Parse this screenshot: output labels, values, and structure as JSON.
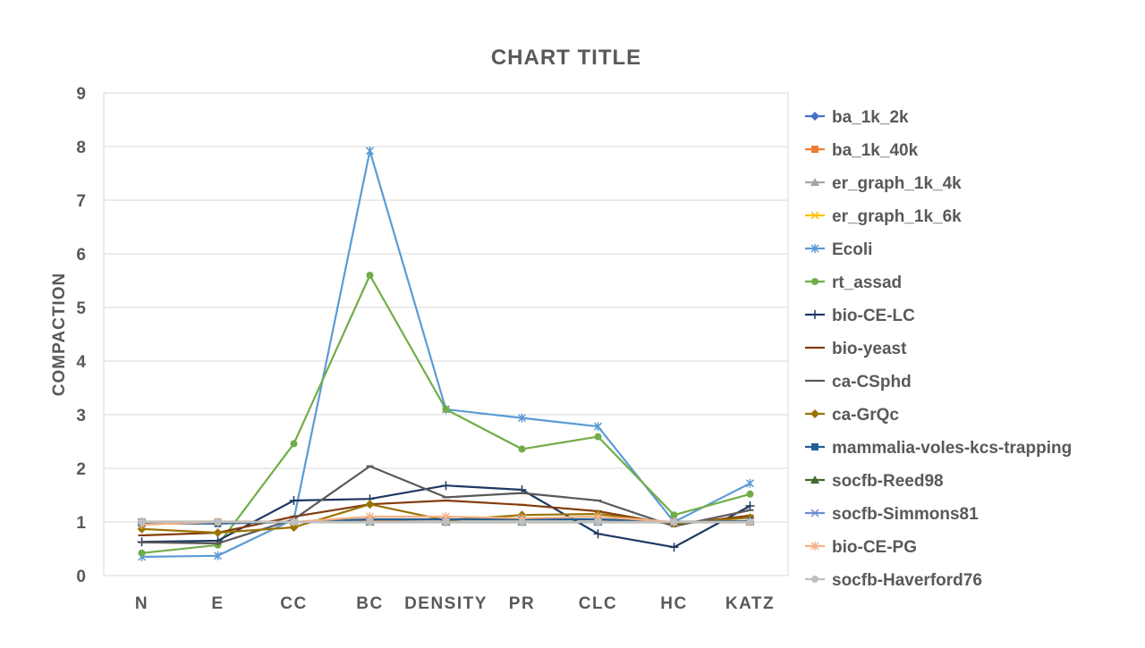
{
  "chart_data": {
    "type": "line",
    "title": "CHART TITLE",
    "xlabel": "",
    "ylabel": "COMPACTION",
    "categories": [
      "N",
      "E",
      "CC",
      "BC",
      "DENSITY",
      "PR",
      "CLC",
      "HC",
      "KATZ"
    ],
    "ylim": [
      0,
      9
    ],
    "yticks": [
      "0",
      "1",
      "2",
      "3",
      "4",
      "5",
      "6",
      "7",
      "8",
      "9"
    ],
    "grid": true,
    "legend_position": "right",
    "series": [
      {
        "name": "ba_1k_2k",
        "color": "#4472C4",
        "marker": "diamond",
        "values": [
          1.0,
          1.0,
          1.0,
          1.02,
          1.0,
          1.0,
          1.0,
          1.0,
          1.0
        ]
      },
      {
        "name": "ba_1k_40k",
        "color": "#ED7D31",
        "marker": "square",
        "values": [
          1.0,
          1.0,
          1.0,
          1.02,
          1.0,
          1.0,
          1.0,
          1.0,
          1.0
        ]
      },
      {
        "name": "er_graph_1k_4k",
        "color": "#A5A5A5",
        "marker": "triangle",
        "values": [
          1.0,
          1.0,
          1.0,
          1.0,
          1.0,
          1.0,
          1.0,
          1.0,
          1.0
        ]
      },
      {
        "name": "er_graph_1k_6k",
        "color": "#FFC000",
        "marker": "x",
        "values": [
          1.0,
          1.0,
          1.0,
          1.0,
          1.0,
          1.0,
          1.0,
          1.0,
          1.0
        ]
      },
      {
        "name": "Ecoli",
        "color": "#5B9BD5",
        "marker": "star",
        "values": [
          0.35,
          0.37,
          1.05,
          7.92,
          3.1,
          2.94,
          2.78,
          1.0,
          1.72
        ]
      },
      {
        "name": "rt_assad",
        "color": "#70AD47",
        "marker": "circle",
        "values": [
          0.42,
          0.57,
          2.46,
          5.6,
          3.1,
          2.36,
          2.59,
          1.13,
          1.52
        ]
      },
      {
        "name": "bio-CE-LC",
        "color": "#1F3864",
        "marker": "plus",
        "values": [
          0.63,
          0.65,
          1.4,
          1.43,
          1.68,
          1.6,
          0.78,
          0.53,
          1.3
        ]
      },
      {
        "name": "bio-yeast",
        "color": "#843C0C",
        "marker": "dash",
        "values": [
          0.75,
          0.8,
          1.1,
          1.33,
          1.4,
          1.32,
          1.2,
          0.95,
          1.12
        ]
      },
      {
        "name": "ca-CSphd",
        "color": "#595959",
        "marker": "dash",
        "values": [
          0.62,
          0.6,
          1.05,
          2.04,
          1.46,
          1.54,
          1.4,
          0.92,
          1.22
        ]
      },
      {
        "name": "ca-GrQc",
        "color": "#997300",
        "marker": "diamond",
        "values": [
          0.87,
          0.8,
          0.9,
          1.33,
          1.03,
          1.13,
          1.15,
          0.97,
          1.08
        ]
      },
      {
        "name": "mammalia-voles-kcs-trapping",
        "color": "#255E91",
        "marker": "square",
        "values": [
          0.97,
          0.97,
          1.0,
          1.05,
          1.05,
          1.05,
          1.05,
          1.0,
          1.02
        ]
      },
      {
        "name": "socfb-Reed98",
        "color": "#43682B",
        "marker": "triangle",
        "values": [
          1.0,
          1.0,
          1.0,
          1.0,
          1.0,
          1.0,
          1.0,
          1.0,
          1.0
        ]
      },
      {
        "name": "socfb-Simmons81",
        "color": "#698ED0",
        "marker": "x",
        "values": [
          1.0,
          1.0,
          1.0,
          1.0,
          1.0,
          1.0,
          1.0,
          1.0,
          1.0
        ]
      },
      {
        "name": "bio-CE-PG",
        "color": "#F4B183",
        "marker": "star",
        "values": [
          0.95,
          1.0,
          1.0,
          1.1,
          1.1,
          1.07,
          1.1,
          1.0,
          1.0
        ]
      },
      {
        "name": "socfb-Haverford76",
        "color": "#BFBFBF",
        "marker": "circle",
        "values": [
          1.0,
          1.0,
          1.0,
          1.0,
          1.0,
          1.0,
          1.0,
          1.0,
          1.0
        ]
      }
    ]
  }
}
